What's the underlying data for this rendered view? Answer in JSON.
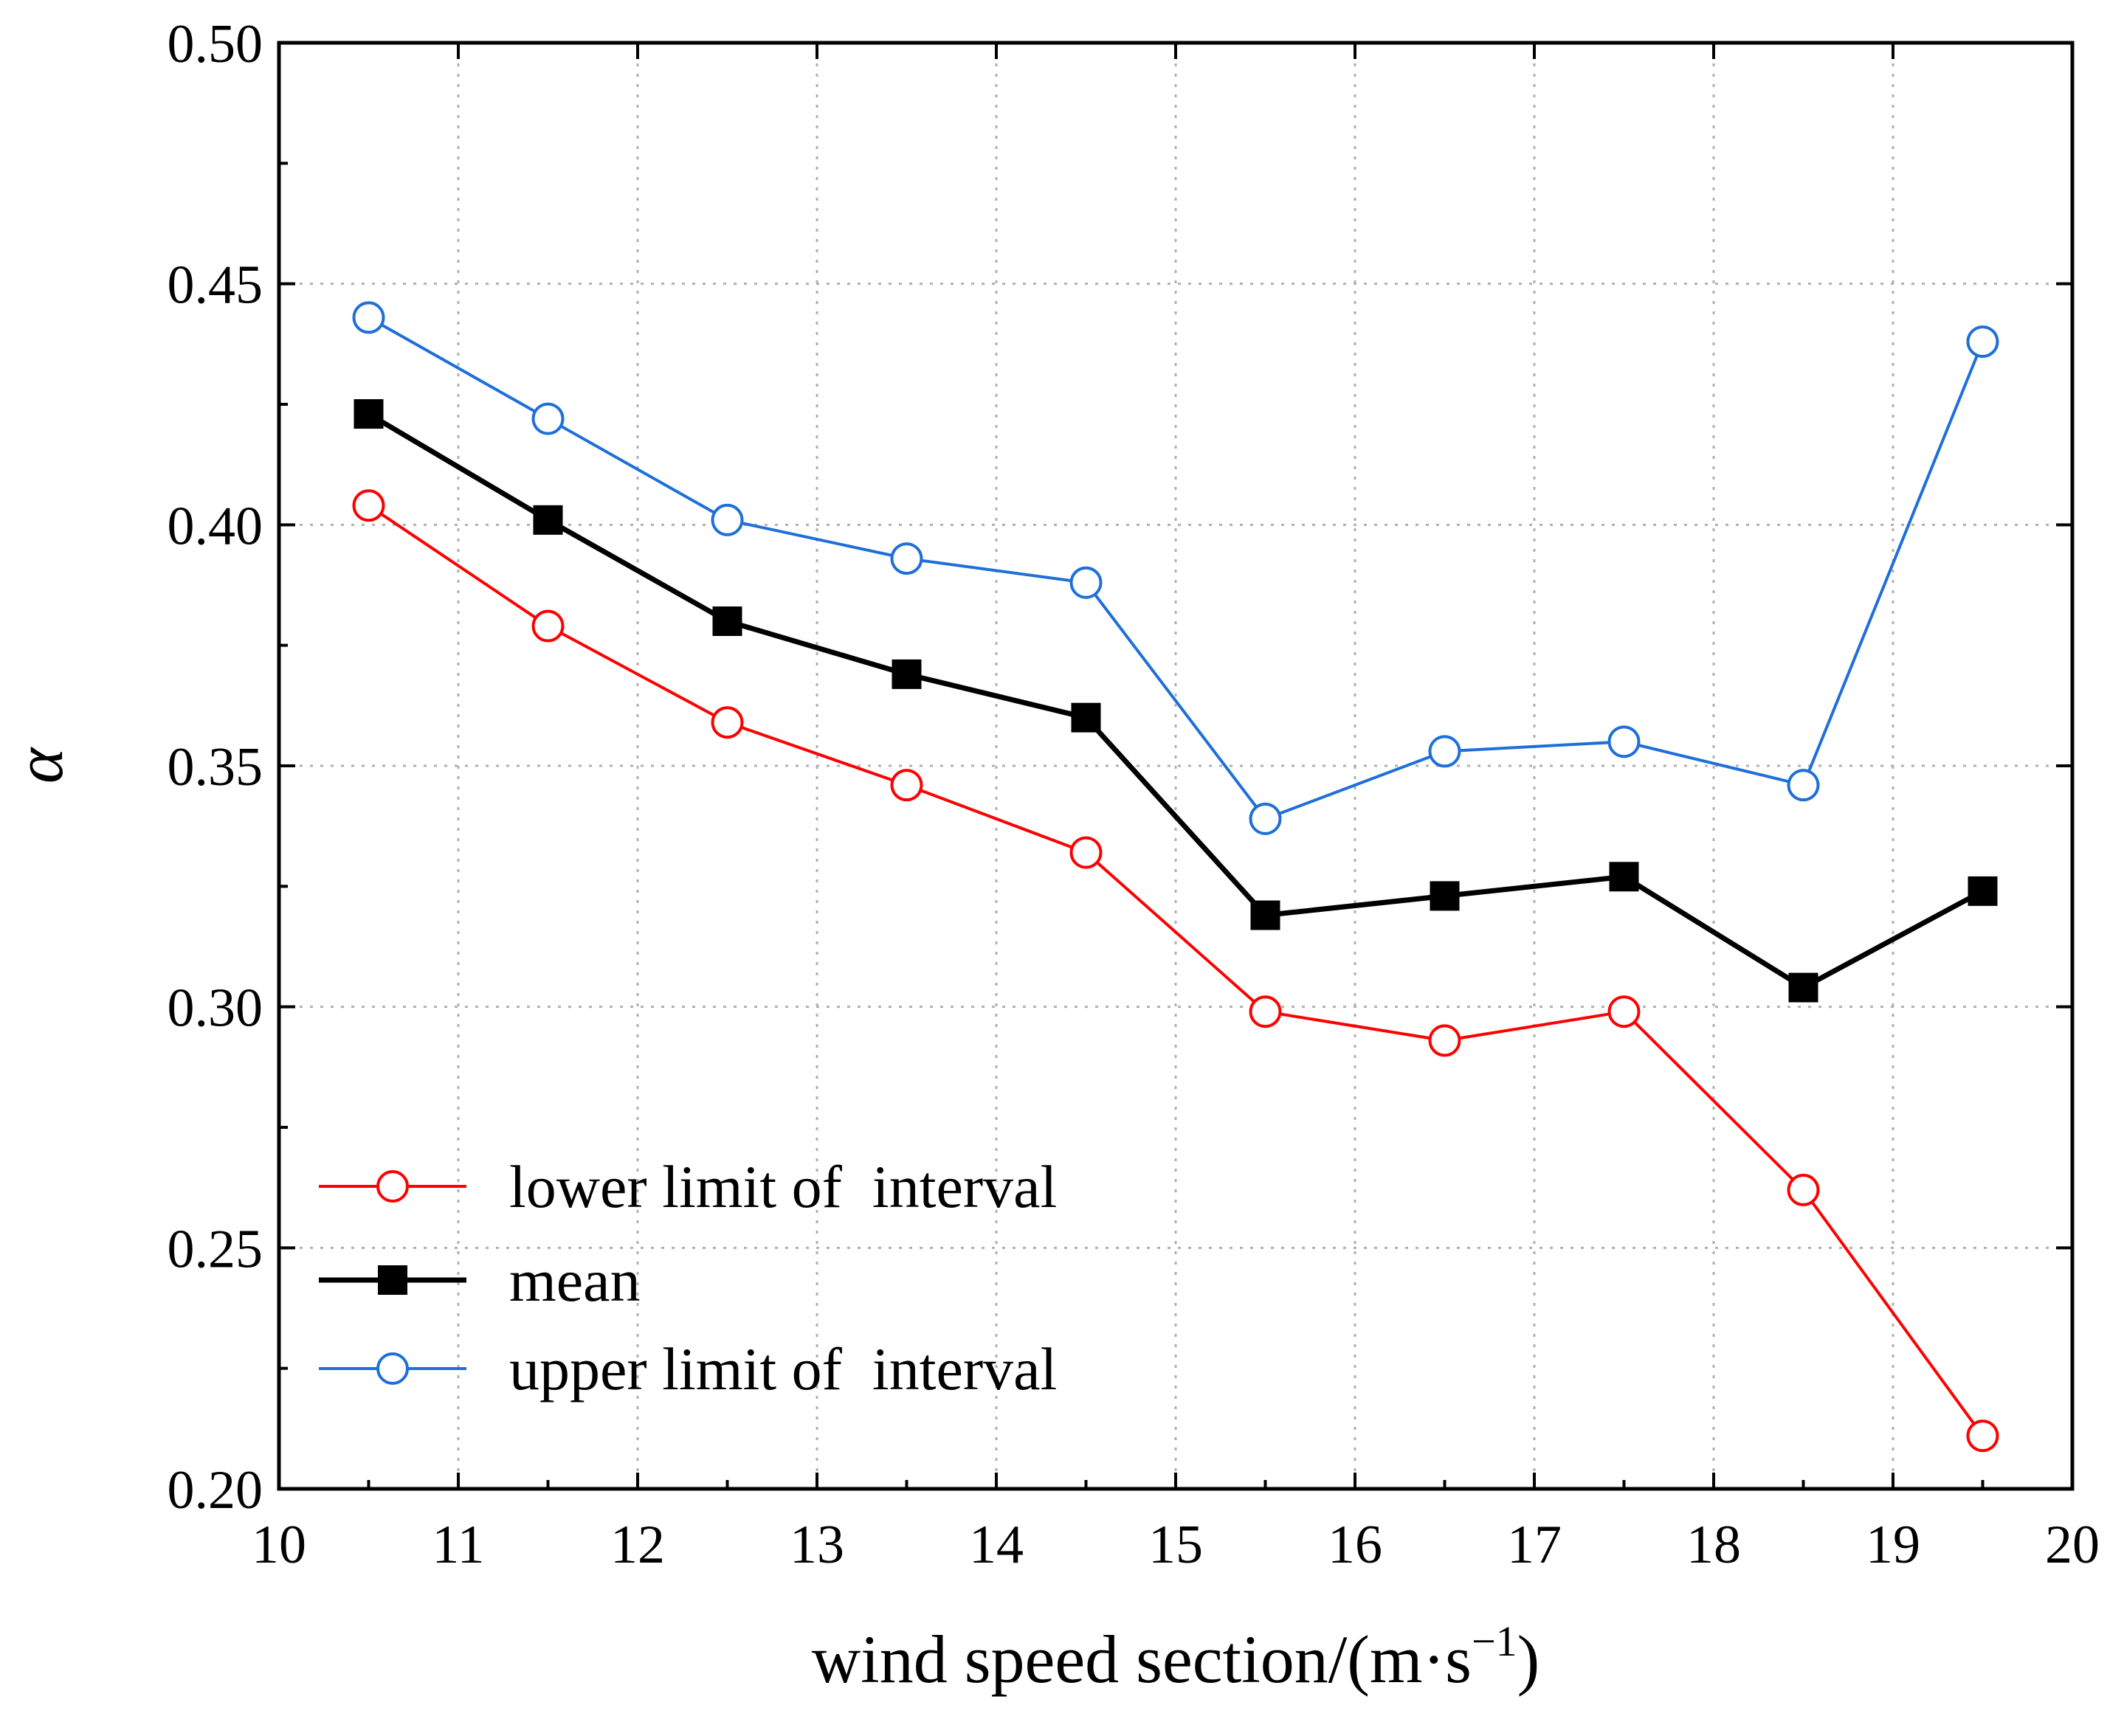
{
  "chart_data": {
    "type": "line",
    "title": "",
    "xlabel": "wind speed section/(m·s",
    "xlabel_sup": "−1",
    "xlabel_tail": ")",
    "ylabel": "α",
    "xlim": [
      10,
      20
    ],
    "ylim": [
      0.2,
      0.5
    ],
    "x_ticks": [
      10,
      11,
      12,
      13,
      14,
      15,
      16,
      17,
      18,
      19,
      20
    ],
    "x_tick_labels": [
      "10",
      "11",
      "12",
      "13",
      "14",
      "15",
      "16",
      "17",
      "18",
      "19",
      "20"
    ],
    "y_ticks": [
      0.2,
      0.25,
      0.3,
      0.35,
      0.4,
      0.45,
      0.5
    ],
    "y_tick_labels": [
      "0.20",
      "0.25",
      "0.30",
      "0.35",
      "0.40",
      "0.45",
      "0.50"
    ],
    "grid": true,
    "legend_position": "bottom-left",
    "x": [
      10.5,
      11.5,
      12.5,
      13.5,
      14.5,
      15.5,
      16.5,
      17.5,
      18.5,
      19.5
    ],
    "series": [
      {
        "name": "lower limit of  interval",
        "color": "#ff0000",
        "marker": "open-circle",
        "values": [
          0.404,
          0.379,
          0.359,
          0.346,
          0.332,
          0.299,
          0.293,
          0.299,
          0.262,
          0.211
        ]
      },
      {
        "name": "mean",
        "color": "#000000",
        "marker": "filled-square",
        "values": [
          0.423,
          0.401,
          0.38,
          0.369,
          0.36,
          0.319,
          0.323,
          0.327,
          0.304,
          0.324
        ]
      },
      {
        "name": "upper limit of  interval",
        "color": "#1e6fd9",
        "marker": "open-circle",
        "values": [
          0.443,
          0.422,
          0.401,
          0.393,
          0.388,
          0.339,
          0.353,
          0.355,
          0.346,
          0.438
        ]
      }
    ]
  }
}
